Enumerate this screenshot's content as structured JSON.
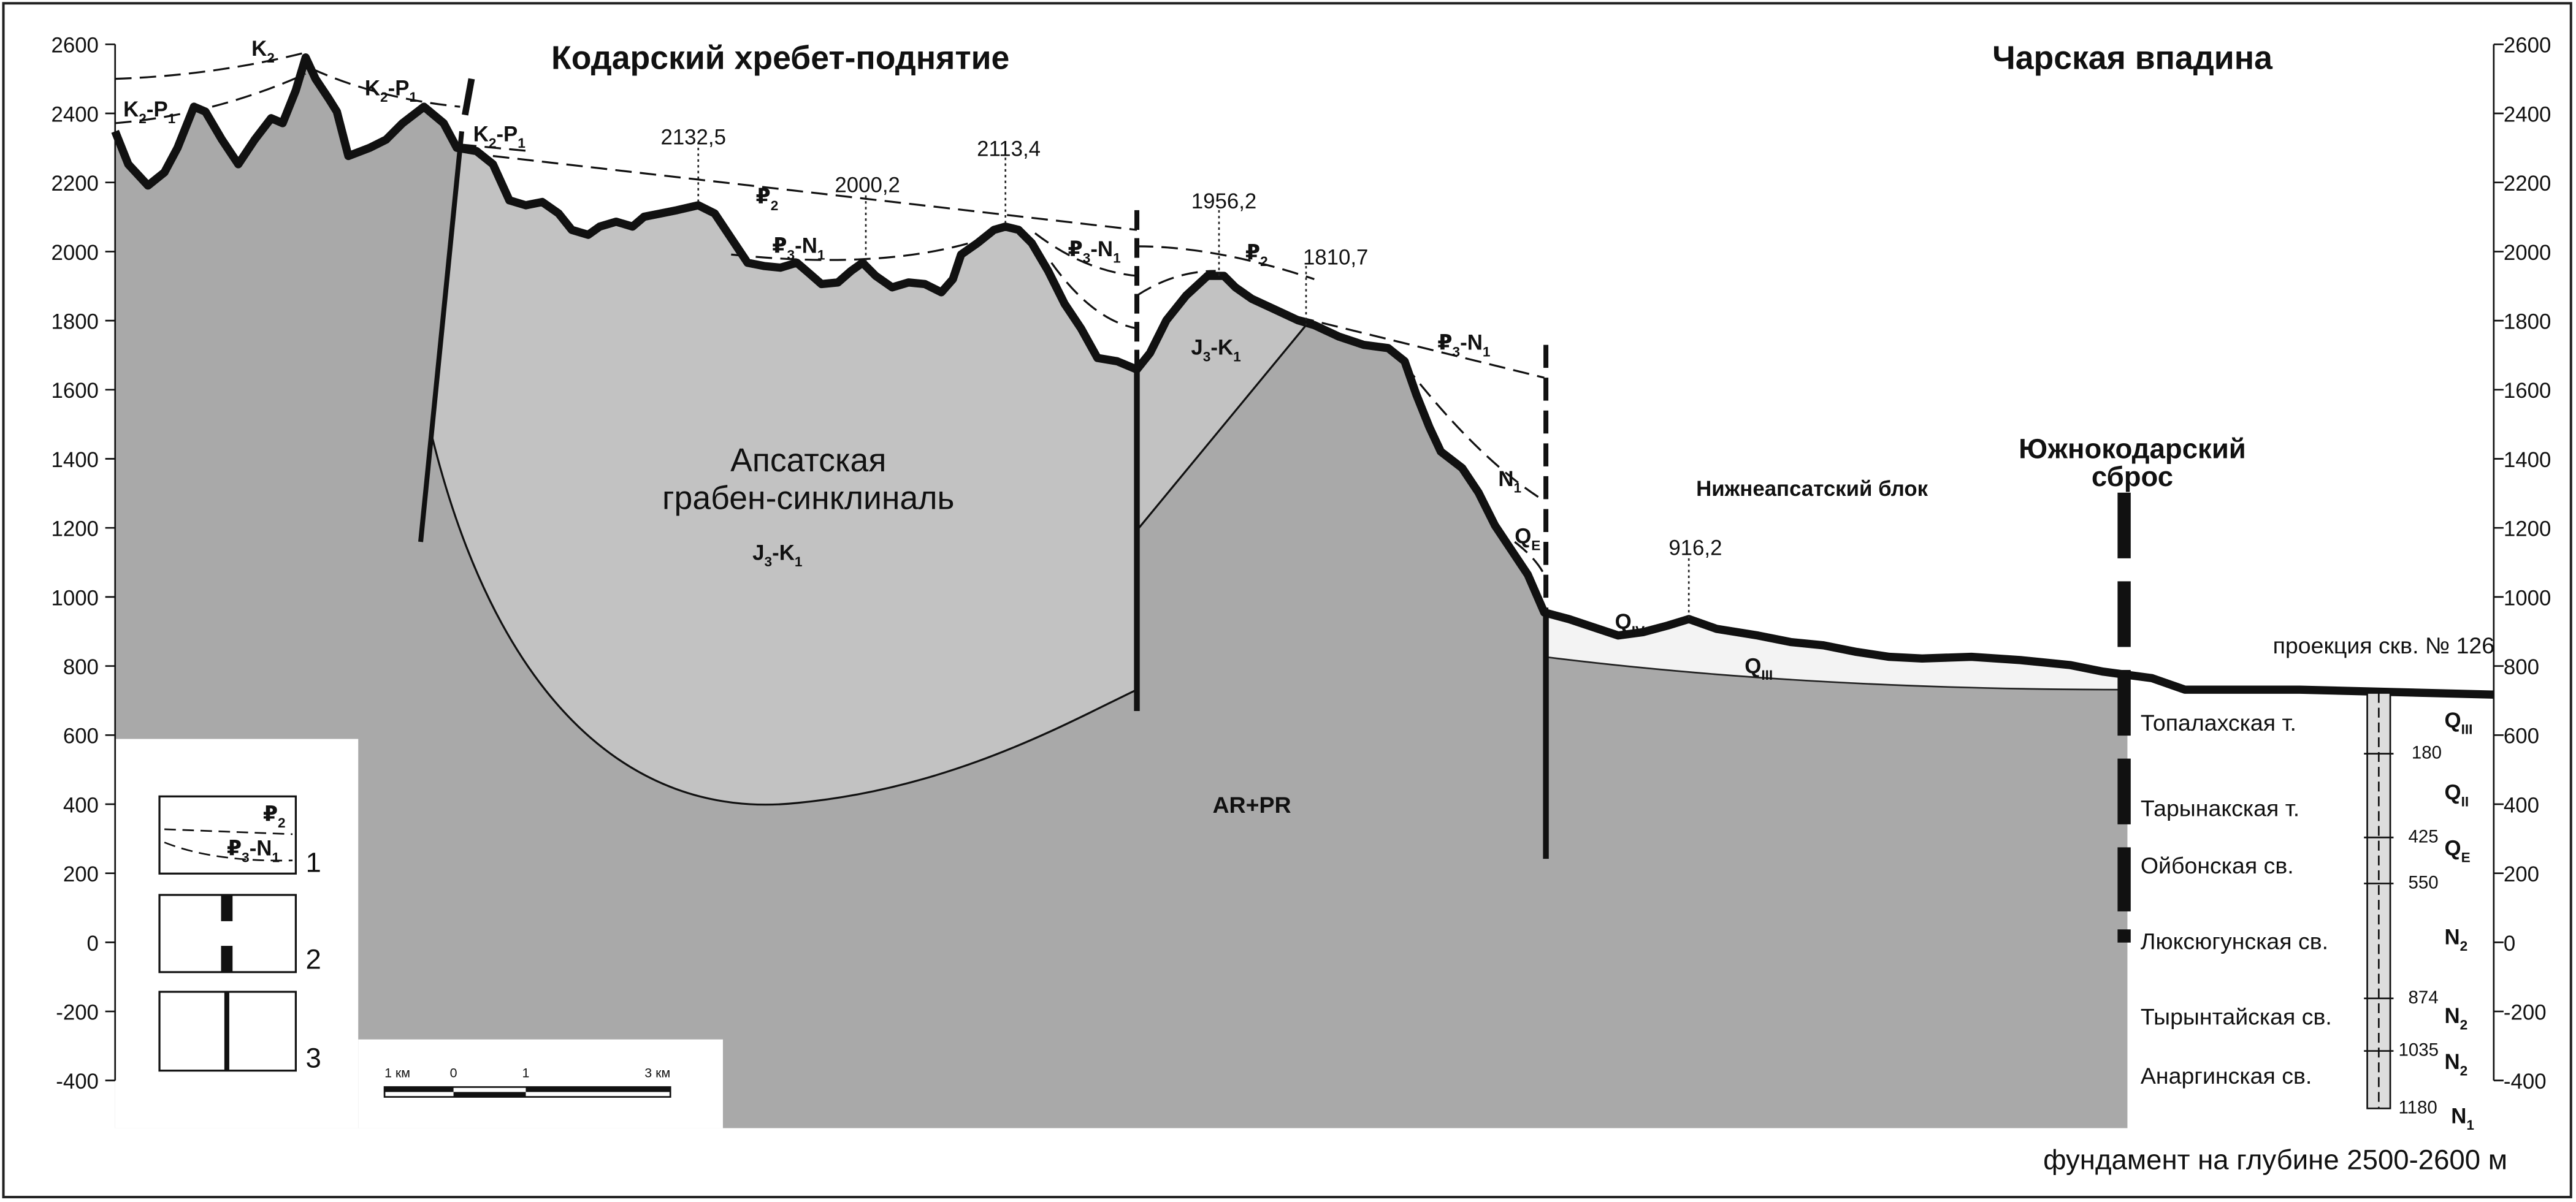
{
  "header": {
    "left_title": "Кодарский хребет-поднятие",
    "right_title": "Чарская впадина"
  },
  "axes": {
    "left_ticks": [
      2600,
      2400,
      2200,
      2000,
      1800,
      1600,
      1400,
      1200,
      1000,
      800,
      600,
      400,
      200,
      0,
      -200,
      -400
    ],
    "right_ticks": [
      2600,
      2400,
      2200,
      2000,
      1800,
      1600,
      1400,
      1200,
      1000,
      800,
      600,
      400,
      200,
      0,
      -200,
      -400
    ]
  },
  "elevations": [
    "2132,5",
    "2000,2",
    "2113,4",
    "1956,2",
    "1810,7",
    "916,2"
  ],
  "units": [
    [
      [
        "K",
        "2"
      ]
    ],
    [
      [
        "K",
        "2"
      ],
      [
        "-P",
        "1"
      ]
    ],
    [
      [
        "K",
        "2"
      ],
      [
        "-P",
        "1"
      ]
    ],
    [
      [
        "K",
        "2"
      ],
      [
        "-P",
        "1"
      ]
    ],
    [
      [
        "₽",
        "2"
      ]
    ],
    [
      [
        "₽",
        "3"
      ],
      [
        "-N",
        "1"
      ]
    ],
    [
      [
        "₽",
        "3"
      ],
      [
        "-N",
        "1"
      ]
    ],
    [
      [
        "₽",
        "2"
      ]
    ],
    [
      [
        "J",
        "3"
      ],
      [
        "-K",
        "1"
      ]
    ],
    [
      [
        "₽",
        "3"
      ],
      [
        "-N",
        "1"
      ]
    ],
    [
      [
        "N",
        "1"
      ]
    ],
    [
      [
        "Q",
        "E"
      ]
    ],
    [
      [
        "J",
        "3"
      ],
      [
        "-K",
        "1"
      ]
    ],
    [
      [
        "Q",
        "IV"
      ]
    ],
    [
      [
        "Q",
        "III"
      ]
    ]
  ],
  "labels": {
    "syncline": [
      "Апсатская",
      "грабен-синклиналь"
    ],
    "block": "Нижнеапсатский блок",
    "fault": [
      "Южнокодарский",
      "сброс"
    ],
    "basement": "AR+PR",
    "well": "проекция скв. № 126",
    "footer": "фундамент на глубине 2500-2600 м"
  },
  "formations": [
    {
      "name": "Топалахская т.",
      "age": [
        [
          "Q",
          "III"
        ]
      ]
    },
    {
      "name": "Тарынакская т.",
      "age": [
        [
          "Q",
          "II"
        ]
      ]
    },
    {
      "name": "Ойбонская св.",
      "age": [
        [
          "Q",
          "E"
        ]
      ]
    },
    {
      "name": "Люксюгунская св.",
      "age": [
        [
          "N",
          "2"
        ]
      ]
    },
    {
      "name": "Тырынтайская св.",
      "age": [
        [
          "N",
          "2"
        ]
      ]
    },
    {
      "name": "Анаргинская св.",
      "age": [
        [
          "N",
          "2"
        ]
      ]
    }
  ],
  "well_bottom_age": [
    [
      "N",
      "1"
    ]
  ],
  "depths": [
    "180",
    "425",
    "550",
    "874",
    "1035",
    "1180"
  ],
  "legend": {
    "numbers": [
      "1",
      "2",
      "3"
    ],
    "units": [
      [
        [
          "₽",
          "2"
        ]
      ],
      [
        [
          "₽",
          "3"
        ],
        [
          "-N",
          "1"
        ]
      ]
    ]
  },
  "scale": [
    "1 км",
    "0",
    "1",
    "3 км"
  ]
}
